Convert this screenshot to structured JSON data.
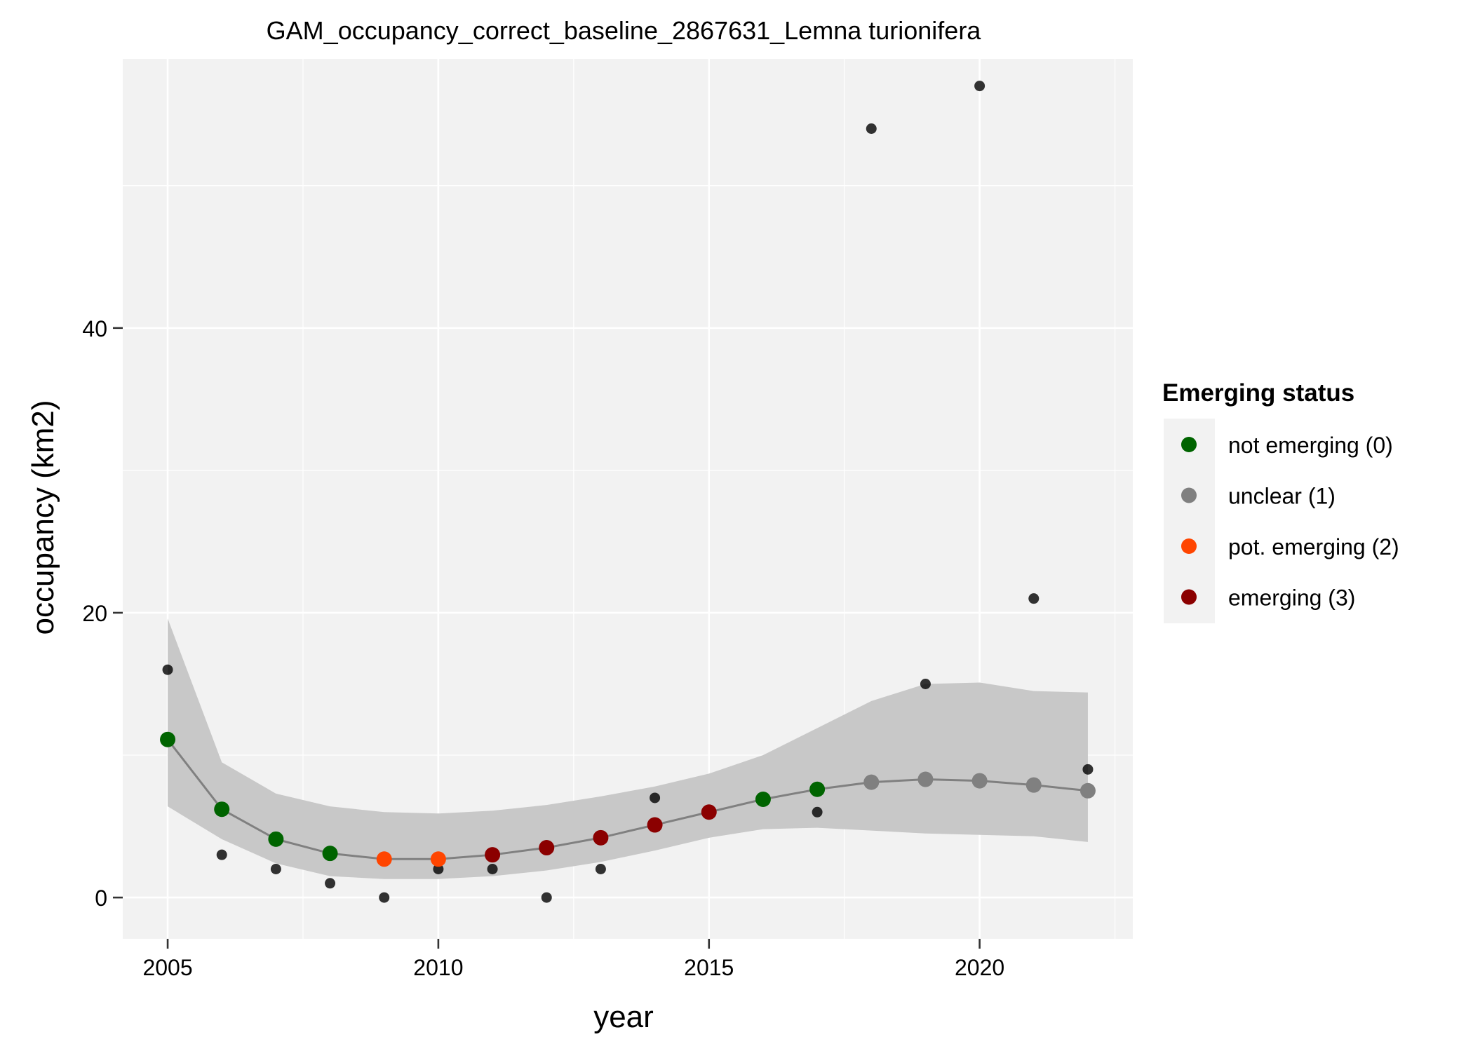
{
  "chart_data": {
    "type": "scatter",
    "title": "GAM_occupancy_correct_baseline_2867631_Lemna turionifera",
    "xlabel": "year",
    "ylabel": "occupancy (km2)",
    "xlim": [
      2004.17,
      2022.83
    ],
    "ylim": [
      -2.9,
      58.9
    ],
    "x_ticks": [
      2005,
      2010,
      2015,
      2020
    ],
    "y_ticks": [
      0,
      20,
      40
    ],
    "grid": true,
    "observed": {
      "color": "#000000",
      "points": [
        {
          "x": 2005,
          "y": 16
        },
        {
          "x": 2006,
          "y": 3
        },
        {
          "x": 2007,
          "y": 2
        },
        {
          "x": 2008,
          "y": 1
        },
        {
          "x": 2009,
          "y": 0
        },
        {
          "x": 2010,
          "y": 2
        },
        {
          "x": 2011,
          "y": 2
        },
        {
          "x": 2012,
          "y": 0
        },
        {
          "x": 2013,
          "y": 2
        },
        {
          "x": 2014,
          "y": 7
        },
        {
          "x": 2015,
          "y": 6
        },
        {
          "x": 2016,
          "y": 7
        },
        {
          "x": 2017,
          "y": 6
        },
        {
          "x": 2018,
          "y": 54
        },
        {
          "x": 2019,
          "y": 15
        },
        {
          "x": 2020,
          "y": 57
        },
        {
          "x": 2021,
          "y": 21
        },
        {
          "x": 2022,
          "y": 9
        }
      ]
    },
    "fit": {
      "line_color": "#808080",
      "ribbon_color": "#c8c8c8",
      "points": [
        {
          "x": 2005,
          "y": 11.1,
          "lower": 6.4,
          "upper": 19.6,
          "status": 0
        },
        {
          "x": 2006,
          "y": 6.2,
          "lower": 4.1,
          "upper": 9.5,
          "status": 0
        },
        {
          "x": 2007,
          "y": 4.1,
          "lower": 2.4,
          "upper": 7.3,
          "status": 0
        },
        {
          "x": 2008,
          "y": 3.1,
          "lower": 1.5,
          "upper": 6.4,
          "status": 0
        },
        {
          "x": 2009,
          "y": 2.7,
          "lower": 1.3,
          "upper": 6.0,
          "status": 2
        },
        {
          "x": 2010,
          "y": 2.7,
          "lower": 1.3,
          "upper": 5.9,
          "status": 2
        },
        {
          "x": 2011,
          "y": 3.0,
          "lower": 1.5,
          "upper": 6.1,
          "status": 3
        },
        {
          "x": 2012,
          "y": 3.5,
          "lower": 1.9,
          "upper": 6.5,
          "status": 3
        },
        {
          "x": 2013,
          "y": 4.2,
          "lower": 2.5,
          "upper": 7.1,
          "status": 3
        },
        {
          "x": 2014,
          "y": 5.1,
          "lower": 3.3,
          "upper": 7.8,
          "status": 3
        },
        {
          "x": 2015,
          "y": 6.0,
          "lower": 4.2,
          "upper": 8.7,
          "status": 3
        },
        {
          "x": 2016,
          "y": 6.9,
          "lower": 4.8,
          "upper": 10.0,
          "status": 0
        },
        {
          "x": 2017,
          "y": 7.6,
          "lower": 4.9,
          "upper": 11.9,
          "status": 0
        },
        {
          "x": 2018,
          "y": 8.1,
          "lower": 4.7,
          "upper": 13.8,
          "status": 1
        },
        {
          "x": 2019,
          "y": 8.3,
          "lower": 4.5,
          "upper": 15.0,
          "status": 1
        },
        {
          "x": 2020,
          "y": 8.2,
          "lower": 4.4,
          "upper": 15.1,
          "status": 1
        },
        {
          "x": 2021,
          "y": 7.9,
          "lower": 4.3,
          "upper": 14.5,
          "status": 1
        },
        {
          "x": 2022,
          "y": 7.5,
          "lower": 3.9,
          "upper": 14.4,
          "status": 1
        }
      ]
    },
    "legend": {
      "title": "Emerging status",
      "position": "right",
      "entries": [
        {
          "status": 0,
          "label": "not emerging (0)",
          "color": "#006400"
        },
        {
          "status": 1,
          "label": "unclear (1)",
          "color": "#808080"
        },
        {
          "status": 2,
          "label": "pot. emerging (2)",
          "color": "#ff4500"
        },
        {
          "status": 3,
          "label": "emerging (3)",
          "color": "#8b0000"
        }
      ]
    },
    "colors": {
      "panel_background": "#f2f2f2",
      "grid": "#ffffff",
      "text": "#000000"
    }
  }
}
